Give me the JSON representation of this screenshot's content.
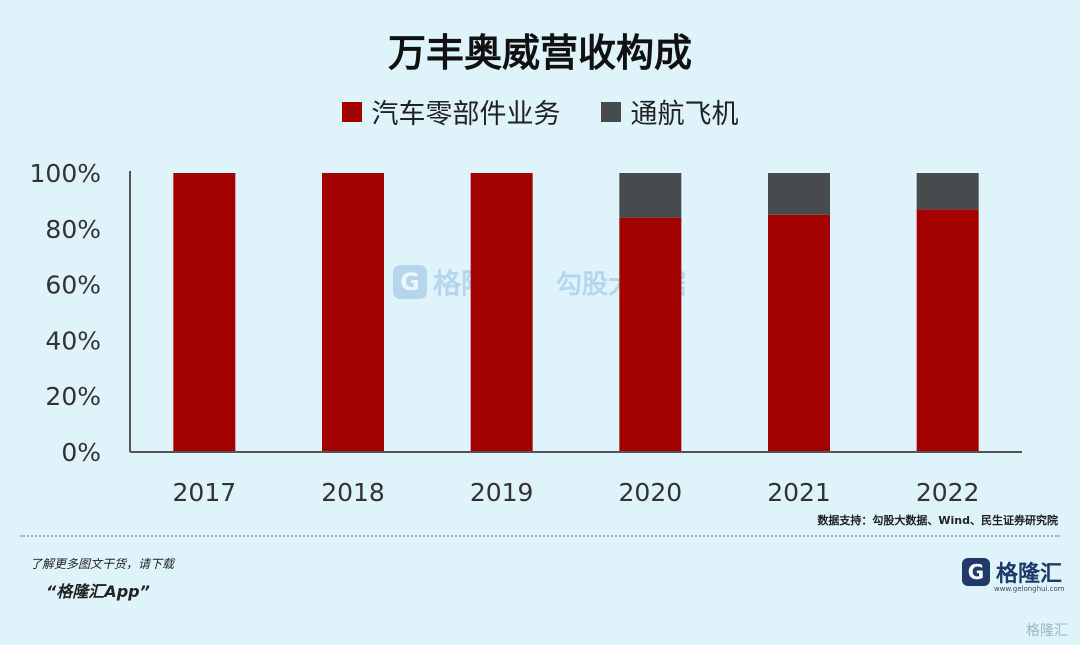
{
  "chart_data": {
    "type": "bar",
    "stacked": true,
    "title": "万丰奥威营收构成",
    "categories": [
      "2017",
      "2018",
      "2019",
      "2020",
      "2021",
      "2022"
    ],
    "series": [
      {
        "name": "汽车零部件业务",
        "color": "#a30000",
        "values": [
          100,
          100,
          100,
          84,
          85,
          87
        ]
      },
      {
        "name": "通航飞机",
        "color": "#474b4e",
        "values": [
          0,
          0,
          0,
          16,
          15,
          13
        ]
      }
    ],
    "ylim": [
      0,
      100
    ],
    "yticks": [
      "0%",
      "20%",
      "40%",
      "60%",
      "80%",
      "100%"
    ],
    "grid": false,
    "legend": "top-center"
  },
  "source": "数据支持：勾股大数据、Wind、民生证券研究院",
  "footer": {
    "line1": "了解更多图文干货，请下载",
    "line2": "“格隆汇App”"
  },
  "brand": {
    "icon": "G",
    "name": "格隆汇",
    "url": "www.gelonghui.com"
  },
  "watermark": {
    "icon": "G",
    "name": "格隆汇",
    "name2": "勾股大数据"
  },
  "corner_mark": "格隆汇"
}
